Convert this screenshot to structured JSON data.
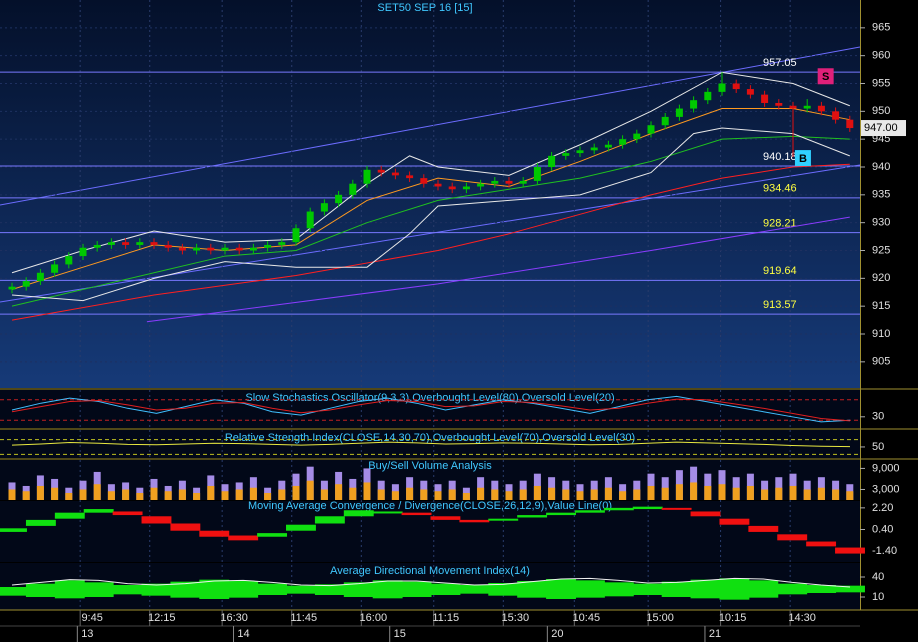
{
  "chart_data": [
    {
      "type": "candlestick",
      "title": "SET50 SEP 16  [15]",
      "ylim": [
        900.3,
        970
      ],
      "yticks": [
        965,
        960,
        955,
        950,
        945,
        940,
        935,
        930,
        925,
        920,
        915,
        910,
        905
      ],
      "up_color": "#00c800",
      "down_color": "#e01010",
      "grid": true,
      "candles": [
        [
          918,
          919.2,
          917.3,
          918.5
        ],
        [
          918.5,
          920.2,
          917.8,
          919.5
        ],
        [
          919.5,
          921.7,
          918.8,
          921
        ],
        [
          921,
          923.2,
          920.3,
          922.5
        ],
        [
          922.5,
          924.7,
          921.8,
          924
        ],
        [
          924,
          926.2,
          923.3,
          925.5
        ],
        [
          925.5,
          926.7,
          924.8,
          926
        ],
        [
          926,
          927.2,
          925.3,
          926.5
        ],
        [
          926.5,
          927.2,
          925.3,
          926
        ],
        [
          926,
          927.2,
          925.3,
          926.5
        ],
        [
          926.5,
          927.2,
          925.3,
          926
        ],
        [
          926,
          926.7,
          924.8,
          925.5
        ],
        [
          925.5,
          926.2,
          924.3,
          925
        ],
        [
          925,
          926.2,
          924.3,
          925.5
        ],
        [
          925.5,
          926.2,
          924.3,
          925
        ],
        [
          925,
          926.2,
          924.3,
          925.5
        ],
        [
          925.5,
          926.2,
          924.3,
          925
        ],
        [
          925,
          926.2,
          924.3,
          925.5
        ],
        [
          925.5,
          926.7,
          924.8,
          926
        ],
        [
          926,
          927.2,
          925.3,
          926.5
        ],
        [
          926.5,
          929.7,
          925.8,
          929
        ],
        [
          929,
          932.7,
          928.3,
          932
        ],
        [
          932,
          934.2,
          931.3,
          933.5
        ],
        [
          933.5,
          935.7,
          932.8,
          935
        ],
        [
          935,
          937.7,
          934.3,
          937
        ],
        [
          937,
          940.2,
          936.3,
          939.5
        ],
        [
          939.5,
          940.2,
          938.3,
          939
        ],
        [
          939,
          939.7,
          937.8,
          938.5
        ],
        [
          938.5,
          939.2,
          937.3,
          938
        ],
        [
          938,
          938.7,
          936.3,
          937
        ],
        [
          937,
          937.7,
          935.8,
          936.5
        ],
        [
          936.5,
          937.2,
          935.3,
          936
        ],
        [
          936,
          937.2,
          935.3,
          936.5
        ],
        [
          936.5,
          937.7,
          935.8,
          937
        ],
        [
          937,
          938.2,
          936.3,
          937.5
        ],
        [
          937.5,
          938.2,
          936.3,
          937
        ],
        [
          937,
          938.2,
          936.3,
          937.5
        ],
        [
          937.5,
          940.7,
          936.8,
          940
        ],
        [
          940,
          942.7,
          939.3,
          942
        ],
        [
          942,
          943.2,
          941.3,
          942.5
        ],
        [
          942.5,
          943.7,
          941.8,
          943
        ],
        [
          943,
          944.2,
          942.3,
          943.5
        ],
        [
          943.5,
          944.7,
          942.8,
          944
        ],
        [
          944,
          945.7,
          943.3,
          945
        ],
        [
          945,
          946.7,
          944.3,
          946
        ],
        [
          946,
          948.2,
          945.3,
          947.5
        ],
        [
          947.5,
          949.7,
          946.8,
          949
        ],
        [
          949,
          951.2,
          948.3,
          950.5
        ],
        [
          950.5,
          952.7,
          949.8,
          952
        ],
        [
          952,
          954.2,
          951.3,
          953.5
        ],
        [
          953.5,
          957.05,
          952.8,
          955
        ],
        [
          955,
          955.7,
          953.3,
          954
        ],
        [
          954,
          954.7,
          952.3,
          953
        ],
        [
          953,
          953.7,
          950.8,
          951.5
        ],
        [
          951.5,
          952.2,
          950.3,
          951
        ],
        [
          951,
          951.7,
          941.8,
          950.5
        ],
        [
          950.5,
          952.2,
          949.8,
          951
        ],
        [
          951,
          951.7,
          949.3,
          950
        ],
        [
          950,
          950.7,
          947.8,
          948.5
        ],
        [
          948.5,
          949.2,
          946.3,
          947
        ]
      ],
      "series": [
        {
          "color": "#ff2020",
          "x": [
            0,
            10,
            20,
            30,
            35,
            40,
            45,
            50,
            55,
            59
          ],
          "values": [
            912.5,
            917,
            920.5,
            925,
            928,
            931.5,
            935,
            938,
            940,
            940.5
          ]
        },
        {
          "color": "#8a3cff",
          "x": [
            9.5,
            30,
            45,
            59
          ],
          "values": [
            912.2,
            919,
            925,
            931
          ]
        },
        {
          "color": "#20c020",
          "x": [
            0,
            10,
            15,
            20,
            25,
            30,
            35,
            40,
            45,
            50,
            55,
            59
          ],
          "values": [
            915,
            921,
            924,
            925,
            930,
            934,
            936,
            938,
            941,
            945,
            945.5,
            945
          ]
        },
        {
          "color": "#ff9a20",
          "x": [
            0,
            5,
            10,
            15,
            20,
            25,
            30,
            35,
            40,
            45,
            50,
            55,
            59
          ],
          "values": [
            918,
            922,
            926,
            925,
            926,
            934,
            938,
            936.5,
            941,
            946,
            950.5,
            950.5,
            948.5
          ]
        },
        {
          "color": "#e8e8e8",
          "x": [
            0,
            5,
            10,
            15,
            20,
            25,
            28,
            30,
            35,
            40,
            45,
            50,
            55,
            59
          ],
          "values": [
            921,
            925,
            928.5,
            926.5,
            927,
            937,
            942,
            940,
            938.5,
            944,
            950,
            957,
            955,
            951
          ]
        },
        {
          "color": "#e8e8e8",
          "x": [
            0,
            5,
            10,
            15,
            20,
            25,
            28,
            30,
            35,
            40,
            45,
            48,
            50,
            55,
            59
          ],
          "values": [
            917,
            916,
            920,
            923,
            922,
            922,
            928,
            933,
            934,
            935,
            939,
            946,
            947,
            946,
            942
          ]
        }
      ],
      "levels": [
        957.05,
        940.18,
        934.46,
        928.21,
        919.64,
        913.57
      ],
      "level_label_colors": [
        "#ffffff",
        "#ffffff",
        "#ffff40",
        "#ffff40",
        "#ffff40",
        "#ffff40"
      ],
      "last_price": {
        "value": 947,
        "label": "947.00"
      },
      "signals": [
        {
          "label": "S",
          "index": 57.3,
          "price": 956.3,
          "color": "#e0207a"
        },
        {
          "label": "B",
          "index": 55.7,
          "price": 941.6,
          "color": "#30d0ff"
        }
      ],
      "xticks": [
        {
          "value": 4.8,
          "label": "9:45"
        },
        {
          "value": 9.7,
          "label": "12:15"
        },
        {
          "value": 14.8,
          "label": "16:30"
        },
        {
          "value": 19.7,
          "label": "11:45"
        },
        {
          "value": 24.6,
          "label": "16:00"
        },
        {
          "value": 29.7,
          "label": "11:15"
        },
        {
          "value": 34.6,
          "label": "15:30"
        },
        {
          "value": 39.6,
          "label": "10:45"
        },
        {
          "value": 44.8,
          "label": "15:00"
        },
        {
          "value": 49.9,
          "label": "10:15"
        },
        {
          "value": 54.8,
          "label": "14:30"
        }
      ],
      "xticks_days": [
        {
          "value": 4.6,
          "label": "13"
        },
        {
          "value": 15.6,
          "label": "14"
        },
        {
          "value": 26.6,
          "label": "15"
        },
        {
          "value": 37.7,
          "label": "20"
        },
        {
          "value": 48.8,
          "label": "21"
        }
      ]
    },
    {
      "type": "line",
      "title": "Slow Stochastics Oscillator(9,3,3),Overbought Level(80),Oversold Level(20)",
      "ylim": [
        -2.9,
        108.8
      ],
      "yticks": [
        30
      ],
      "levels": [
        80,
        20
      ],
      "level_color": "#c02020",
      "series": [
        {
          "color": "#40c0ff",
          "values": [
            50,
            70,
            85,
            75,
            55,
            40,
            60,
            80,
            70,
            45,
            35,
            55,
            75,
            85,
            70,
            50,
            65,
            80,
            70,
            55,
            40,
            60,
            80,
            90,
            75,
            60,
            45,
            30,
            15,
            20
          ]
        },
        {
          "color": "#e02020",
          "values": [
            45,
            60,
            75,
            78,
            65,
            50,
            55,
            70,
            72,
            55,
            42,
            50,
            65,
            78,
            75,
            60,
            62,
            75,
            72,
            62,
            50,
            55,
            70,
            82,
            80,
            68,
            55,
            40,
            25,
            18
          ]
        }
      ]
    },
    {
      "type": "line",
      "title": "Relative Strength Index(CLOSE,14,30,70),Overbought Level(70),Oversold Level(30)",
      "ylim": [
        20,
        96
      ],
      "yticks": [
        50
      ],
      "levels": [
        70,
        30
      ],
      "level_color": "#c0c020",
      "series": [
        {
          "color": "#e8e840",
          "values": [
            55,
            58,
            62,
            60,
            57,
            56,
            58,
            60,
            59,
            57,
            55,
            57,
            60,
            63,
            61,
            58,
            59,
            61,
            60,
            58,
            56,
            57,
            60,
            63,
            61,
            59,
            57,
            54,
            52,
            51
          ]
        }
      ]
    },
    {
      "type": "bar",
      "title": "Buy/Sell Volume Analysis",
      "ylim": [
        0,
        11400
      ],
      "yticks": [
        {
          "value": 9000,
          "label": "9,000"
        },
        {
          "value": 3000,
          "label": "3,000"
        }
      ],
      "series": [
        {
          "color": "#a58ce6",
          "values": [
            5000,
            4000,
            7000,
            6000,
            3500,
            5500,
            8000,
            4500,
            5000,
            3500,
            6000,
            4000,
            5500,
            3500,
            7000,
            4500,
            5000,
            6500,
            3500,
            5500,
            7500,
            9500,
            5500,
            8000,
            6000,
            9000,
            5500,
            4500,
            6500,
            5500,
            4500,
            5500,
            3500,
            6500,
            5500,
            4500,
            5500,
            7500,
            6500,
            5500,
            4500,
            5500,
            6500,
            4500,
            5500,
            7500,
            6500,
            8500,
            9500,
            7500,
            8500,
            6500,
            7500,
            5500,
            6500,
            7500,
            5500,
            6500,
            5500,
            4500
          ]
        },
        {
          "color": "#f0a020",
          "values": [
            3000,
            2500,
            4000,
            3500,
            2000,
            3000,
            4500,
            2500,
            3000,
            2000,
            3500,
            2500,
            3000,
            2000,
            4000,
            2500,
            3000,
            3500,
            2000,
            3000,
            4000,
            5500,
            3000,
            4500,
            3500,
            5000,
            3000,
            2500,
            3500,
            3000,
            2500,
            3000,
            2000,
            3500,
            3000,
            2500,
            3000,
            4000,
            3500,
            3000,
            2500,
            3000,
            3500,
            2500,
            3000,
            4000,
            3500,
            4500,
            5000,
            4000,
            4500,
            3500,
            4000,
            3000,
            3500,
            4000,
            3000,
            3500,
            3000,
            2500
          ]
        }
      ]
    },
    {
      "type": "band",
      "title": "Moving Average Convergence / Divergence(CLOSE,26,12,9),Value Line(0)",
      "ylim": [
        -2.3,
        2.77
      ],
      "yticks": [
        {
          "value": 2.2,
          "label": "2.20"
        },
        {
          "value": 0.4,
          "label": "0.40"
        },
        {
          "value": -1.4,
          "label": "-1.40"
        }
      ],
      "up_color": "#10e010",
      "down_color": "#f01010",
      "series": [
        {
          "values": [
            0.5,
            1.2,
            1.8,
            2.1,
            1.6,
            0.9,
            0.3,
            -0.2,
            -0.5,
            0.1,
            0.8,
            1.5,
            2.0,
            1.9,
            1.6,
            1.2,
            1.0,
            1.3,
            1.6,
            1.8,
            2.0,
            2.2,
            2.3,
            2.1,
            1.5,
            0.8,
            0.2,
            -0.5,
            -1.0,
            -1.6
          ]
        },
        {
          "values": [
            0.2,
            0.7,
            1.3,
            1.8,
            1.9,
            1.5,
            0.9,
            0.3,
            -0.1,
            -0.2,
            0.3,
            0.9,
            1.5,
            1.8,
            1.8,
            1.5,
            1.2,
            1.2,
            1.4,
            1.6,
            1.8,
            2.0,
            2.1,
            2.2,
            1.9,
            1.3,
            0.7,
            0.0,
            -0.6,
            -1.1
          ]
        }
      ]
    },
    {
      "type": "area",
      "title": "Average Directional Movement Index(14)",
      "ylim": [
        -9.5,
        61
      ],
      "yticks": [
        40,
        10
      ],
      "up_color": "#10e010",
      "down_color": "#10e010",
      "series": [
        {
          "values": [
            25,
            30,
            35,
            32,
            28,
            30,
            33,
            36,
            34,
            30,
            27,
            29,
            32,
            35,
            33,
            30,
            28,
            31,
            34,
            37,
            35,
            32,
            30,
            33,
            36,
            38,
            35,
            30,
            28,
            27
          ]
        },
        {
          "values": [
            12,
            10,
            8,
            10,
            14,
            12,
            9,
            7,
            9,
            13,
            15,
            13,
            10,
            8,
            10,
            13,
            15,
            12,
            9,
            7,
            9,
            11,
            13,
            10,
            8,
            6,
            9,
            14,
            16,
            17
          ]
        },
        {
          "color": "#f0f0f0",
          "values": [
            28,
            32,
            36,
            35,
            30,
            28,
            30,
            34,
            35,
            32,
            28,
            27,
            30,
            34,
            34,
            31,
            28,
            29,
            33,
            37,
            38,
            35,
            31,
            32,
            35,
            38,
            37,
            32,
            28,
            25
          ]
        }
      ]
    }
  ]
}
